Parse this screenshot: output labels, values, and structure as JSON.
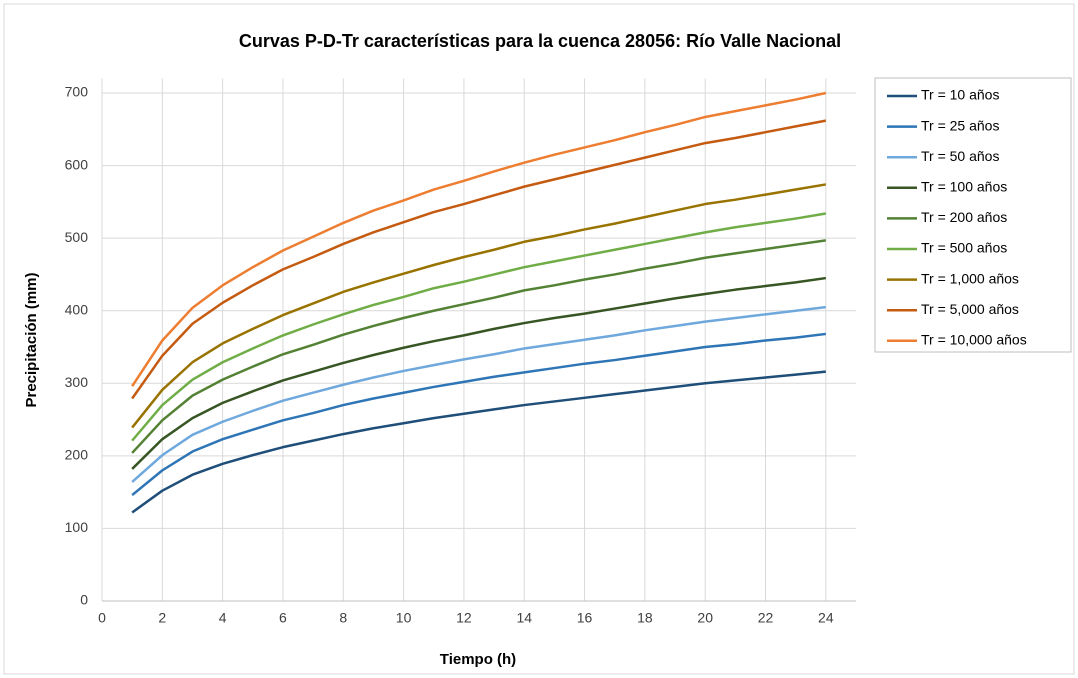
{
  "chart_data": {
    "type": "line",
    "title": "Curvas P-D-Tr características para la cuenca 28056: Río Valle Nacional",
    "x_label": "Tiempo (h)",
    "y_label": "Precipitación (mm)",
    "x": [
      1,
      2,
      3,
      4,
      5,
      6,
      7,
      8,
      9,
      10,
      11,
      12,
      13,
      14,
      15,
      16,
      17,
      18,
      19,
      20,
      21,
      22,
      23,
      24
    ],
    "series": [
      {
        "name": "Tr = 10 años",
        "color": "#1f4e79",
        "values": [
          122,
          152,
          174,
          189,
          201,
          212,
          221,
          230,
          238,
          245,
          252,
          258,
          264,
          270,
          275,
          280,
          285,
          290,
          295,
          300,
          304,
          308,
          312,
          316
        ]
      },
      {
        "name": "Tr = 25 años",
        "color": "#2e75b6",
        "values": [
          146,
          180,
          206,
          223,
          236,
          249,
          259,
          270,
          279,
          287,
          295,
          302,
          309,
          315,
          321,
          327,
          332,
          338,
          344,
          350,
          354,
          359,
          363,
          368
        ]
      },
      {
        "name": "Tr = 50 años",
        "color": "#6fa8dc",
        "values": [
          164,
          201,
          229,
          247,
          262,
          276,
          287,
          298,
          308,
          317,
          325,
          333,
          340,
          348,
          354,
          360,
          366,
          373,
          379,
          385,
          390,
          395,
          400,
          405
        ]
      },
      {
        "name": "Tr = 100 años",
        "color": "#375623",
        "values": [
          182,
          223,
          252,
          273,
          289,
          304,
          316,
          328,
          339,
          349,
          358,
          366,
          375,
          383,
          390,
          396,
          403,
          410,
          417,
          423,
          429,
          434,
          439,
          445
        ]
      },
      {
        "name": "Tr = 200 años",
        "color": "#548235",
        "values": [
          204,
          249,
          283,
          305,
          323,
          340,
          353,
          367,
          379,
          390,
          400,
          409,
          418,
          428,
          435,
          443,
          450,
          458,
          465,
          473,
          479,
          485,
          491,
          497
        ]
      },
      {
        "name": "Tr = 500 años",
        "color": "#70ad47",
        "values": [
          221,
          270,
          305,
          329,
          348,
          366,
          381,
          395,
          408,
          419,
          431,
          440,
          450,
          460,
          468,
          476,
          484,
          492,
          500,
          508,
          515,
          521,
          527,
          534
        ]
      },
      {
        "name": "Tr = 1,000 años",
        "color": "#997300",
        "values": [
          239,
          291,
          329,
          355,
          375,
          394,
          410,
          426,
          439,
          451,
          463,
          474,
          484,
          495,
          503,
          512,
          520,
          529,
          538,
          547,
          553,
          560,
          567,
          574
        ]
      },
      {
        "name": "Tr = 5,000 años",
        "color": "#c55a11",
        "values": [
          279,
          338,
          382,
          411,
          435,
          457,
          474,
          492,
          508,
          522,
          536,
          547,
          559,
          571,
          581,
          591,
          601,
          611,
          621,
          631,
          638,
          646,
          654,
          662
        ]
      },
      {
        "name": "Tr = 10,000 años",
        "color": "#ed7d31",
        "values": [
          296,
          359,
          404,
          435,
          460,
          483,
          502,
          521,
          538,
          552,
          567,
          579,
          592,
          604,
          615,
          625,
          635,
          646,
          656,
          667,
          675,
          683,
          691,
          700
        ]
      }
    ],
    "xlim": [
      0,
      25
    ],
    "xticks": [
      0,
      2,
      4,
      6,
      8,
      10,
      12,
      14,
      16,
      18,
      20,
      22,
      24
    ],
    "ylim": [
      0,
      720
    ],
    "yticks": [
      0,
      100,
      200,
      300,
      400,
      500,
      600,
      700
    ],
    "grid": true,
    "legend": "right"
  }
}
